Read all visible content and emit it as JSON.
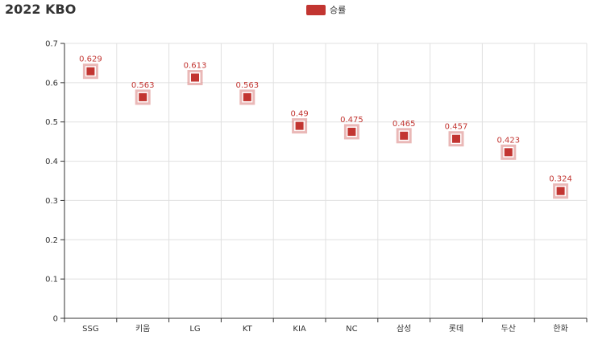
{
  "chart_data": {
    "type": "scatter",
    "title": "2022 KBO",
    "xlabel": "",
    "ylabel": "",
    "categories": [
      "SSG",
      "키움",
      "LG",
      "KT",
      "KIA",
      "NC",
      "삼성",
      "롯데",
      "두산",
      "한화"
    ],
    "series": [
      {
        "name": "승률",
        "values": [
          0.629,
          0.563,
          0.613,
          0.563,
          0.49,
          0.475,
          0.465,
          0.457,
          0.423,
          0.324
        ],
        "labels": [
          "0.629",
          "0.563",
          "0.613",
          "0.563",
          "0.49",
          "0.475",
          "0.465",
          "0.457",
          "0.423",
          "0.324"
        ]
      }
    ],
    "ylim": [
      0,
      0.7
    ],
    "yticks": [
      "0",
      "0.1",
      "0.2",
      "0.3",
      "0.4",
      "0.5",
      "0.6",
      "0.7"
    ],
    "grid": true,
    "legend_position": "top-center",
    "color": "#c23531"
  }
}
